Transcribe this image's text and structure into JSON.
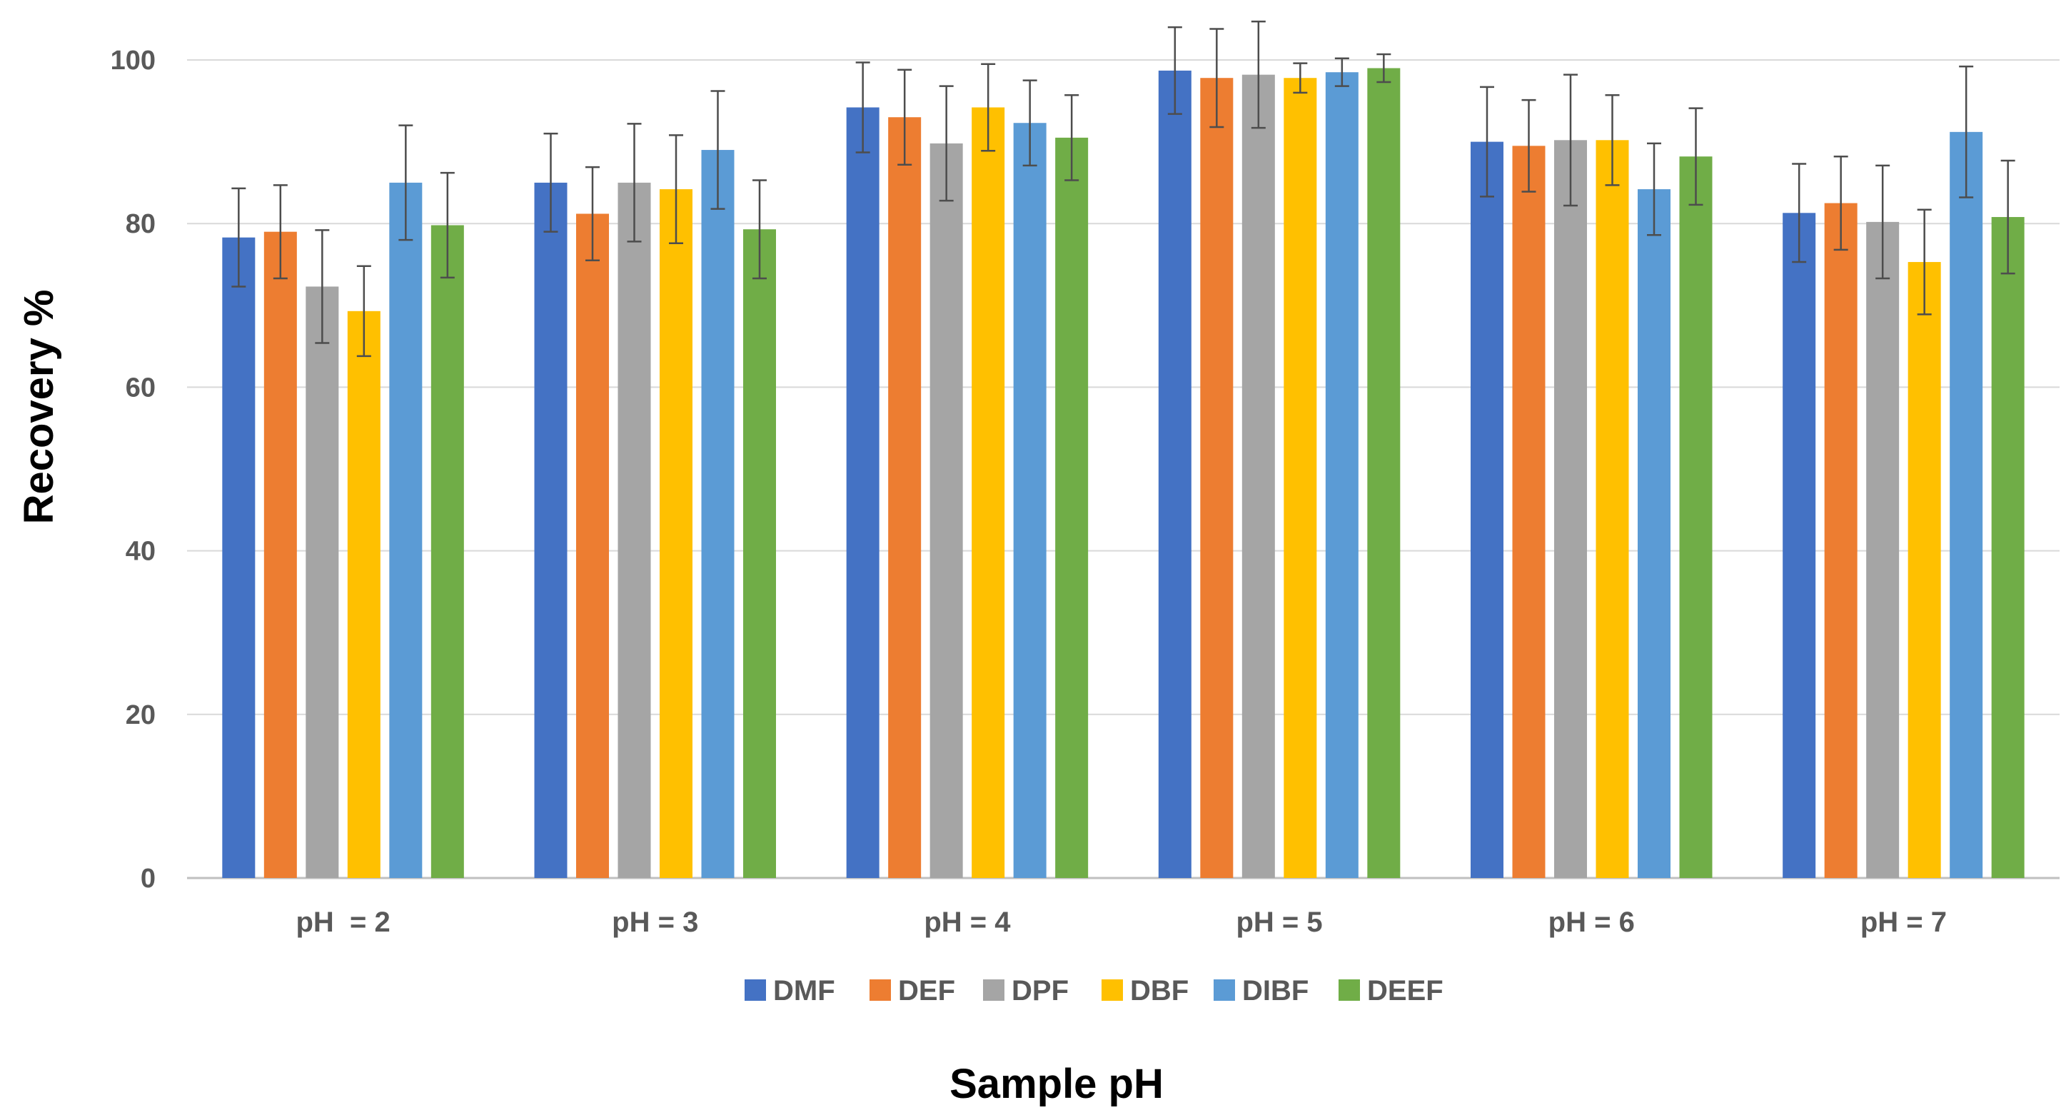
{
  "chart_data": {
    "type": "bar",
    "title": "",
    "xlabel": "Sample pH",
    "ylabel": "Recovery %",
    "ylim": [
      0,
      100
    ],
    "yticks": [
      0,
      20,
      40,
      60,
      80,
      100
    ],
    "grid": true,
    "legend_position": "bottom",
    "categories": [
      "pH  = 2",
      "pH = 3",
      "pH = 4",
      "pH = 5",
      "pH = 6",
      "pH = 7"
    ],
    "series": [
      {
        "name": "DMF",
        "color": "#4472C4",
        "values": [
          78.3,
          85.0,
          94.2,
          98.7,
          90.0,
          81.3
        ],
        "errors": [
          6.0,
          6.0,
          5.5,
          5.3,
          6.7,
          6.0
        ]
      },
      {
        "name": "DEF",
        "color": "#ED7D31",
        "values": [
          79.0,
          81.2,
          93.0,
          97.8,
          89.5,
          82.5
        ],
        "errors": [
          5.7,
          5.7,
          5.8,
          6.0,
          5.6,
          5.7
        ]
      },
      {
        "name": "DPF",
        "color": "#A5A5A5",
        "values": [
          72.3,
          85.0,
          89.8,
          98.2,
          90.2,
          80.2
        ],
        "errors": [
          6.9,
          7.2,
          7.0,
          6.5,
          8.0,
          6.9
        ]
      },
      {
        "name": "DBF",
        "color": "#FFC000",
        "values": [
          69.3,
          84.2,
          94.2,
          97.8,
          90.2,
          75.3
        ],
        "errors": [
          5.5,
          6.6,
          5.3,
          1.8,
          5.5,
          6.4
        ]
      },
      {
        "name": "DIBF",
        "color": "#5B9BD5",
        "values": [
          85.0,
          89.0,
          92.3,
          98.5,
          84.2,
          91.2
        ],
        "errors": [
          7.0,
          7.2,
          5.2,
          1.7,
          5.6,
          8.0
        ]
      },
      {
        "name": "DEEF",
        "color": "#70AD47",
        "values": [
          79.8,
          79.3,
          90.5,
          99.0,
          88.2,
          80.8
        ],
        "errors": [
          6.4,
          6.0,
          5.2,
          1.7,
          5.9,
          6.9
        ]
      }
    ]
  }
}
